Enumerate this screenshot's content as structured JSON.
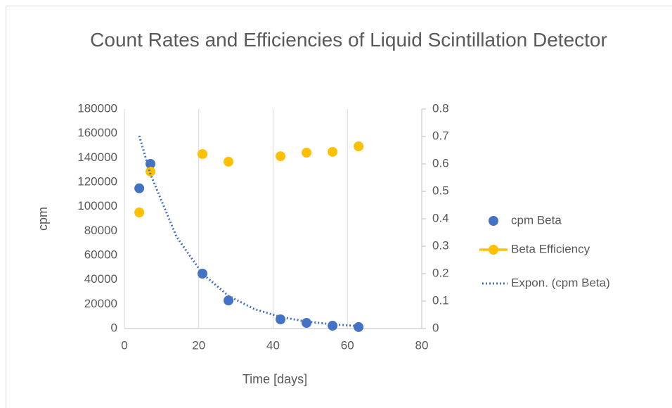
{
  "chart_data": {
    "type": "scatter",
    "title": "Count Rates and Efficiencies of Liquid Scintillation Detector",
    "xlabel": "Time [days]",
    "ylabel": "cpm",
    "xlim": [
      0,
      80
    ],
    "xticks": [
      0,
      20,
      40,
      60,
      80
    ],
    "ylim": [
      0,
      180000
    ],
    "yticks": [
      0,
      20000,
      40000,
      60000,
      80000,
      100000,
      120000,
      140000,
      160000,
      180000
    ],
    "y2lim": [
      0,
      0.8
    ],
    "y2ticks": [
      0,
      0.1,
      0.2,
      0.3,
      0.4,
      0.5,
      0.6,
      0.7,
      0.8
    ],
    "grid": "x",
    "legend": "right",
    "series": [
      {
        "name": "cpm Beta",
        "color": "#4472c4",
        "marker": true,
        "line": "none",
        "x": [
          4,
          7,
          21,
          28,
          42,
          49,
          56,
          63
        ],
        "values": [
          115000,
          135000,
          45000,
          23000,
          7500,
          4600,
          2300,
          1200
        ]
      },
      {
        "name": "Beta Efficiency",
        "color": "#ffc000",
        "axis": "y2",
        "marker": true,
        "line": "none",
        "legend_symbol": "line-marker",
        "x": [
          4,
          7,
          21,
          28,
          42,
          49,
          56,
          63
        ],
        "values": [
          0.423,
          0.572,
          0.636,
          0.608,
          0.628,
          0.641,
          0.644,
          0.664
        ],
        "errors": [
          0.002,
          0.002,
          0.002,
          0.002,
          0.002,
          0.004,
          0.006,
          0.01
        ]
      },
      {
        "name": "Expon. (cpm Beta)",
        "color": "#4472c4",
        "marker": false,
        "line": "dotted",
        "x": [
          4,
          7,
          14,
          21,
          28,
          35,
          42,
          49,
          56,
          63
        ],
        "values": [
          158000,
          126600,
          75400,
          44900,
          26800,
          15900,
          9500,
          5700,
          3400,
          2000
        ]
      }
    ]
  }
}
